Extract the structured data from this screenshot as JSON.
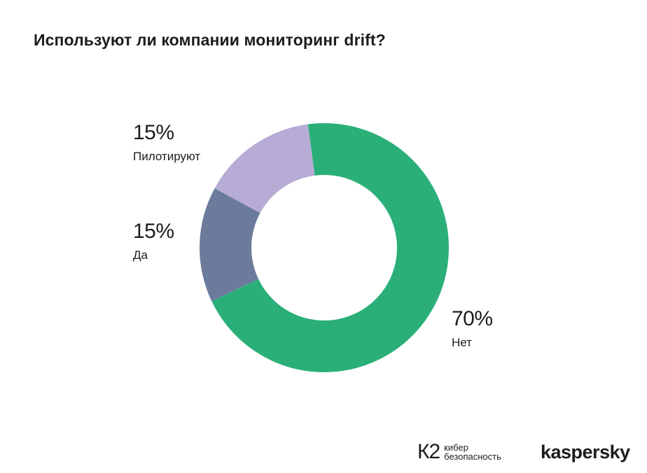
{
  "chart_data": {
    "type": "pie",
    "variant": "donut",
    "title": "Используют ли компании мониторинг drift?",
    "slices": [
      {
        "label": "Нет",
        "value": 70,
        "display": "70%",
        "color": "#2aaf79"
      },
      {
        "label": "Да",
        "value": 15,
        "display": "15%",
        "color": "#6c7b9b"
      },
      {
        "label": "Пилотируют",
        "value": 15,
        "display": "15%",
        "color": "#b7acd5"
      }
    ]
  },
  "logos": {
    "k2_mark": "К2",
    "k2_line1": "кибер",
    "k2_line2": "безопасность",
    "kaspersky": "kaspersky"
  }
}
